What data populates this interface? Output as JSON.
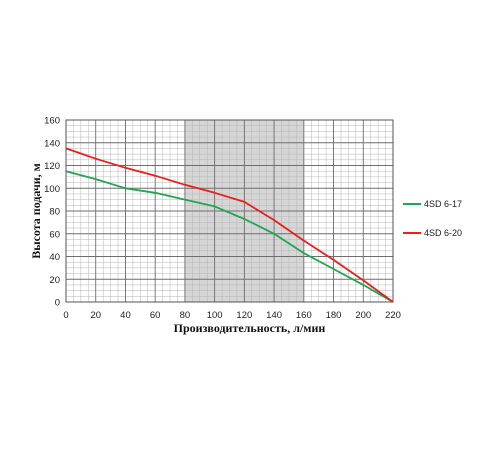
{
  "chart_data": {
    "type": "line",
    "xlabel": "Производительность, л/мин",
    "ylabel": "Высота подачи, м",
    "xlim": [
      0,
      220
    ],
    "ylim": [
      0,
      160
    ],
    "x_ticks": [
      0,
      20,
      40,
      60,
      80,
      100,
      120,
      140,
      160,
      180,
      200,
      220
    ],
    "y_ticks": [
      0,
      20,
      40,
      60,
      80,
      100,
      120,
      140,
      160
    ],
    "grid": true,
    "highlight_range": [
      80,
      160
    ],
    "legend_position": "right",
    "series": [
      {
        "name": "4SD 6-17",
        "color": "#22a550",
        "x": [
          0,
          20,
          40,
          60,
          80,
          100,
          120,
          140,
          160,
          180,
          200,
          220
        ],
        "y": [
          115,
          108,
          100,
          96,
          90,
          84,
          73,
          60,
          43,
          29,
          15,
          0
        ]
      },
      {
        "name": "4SD 6-20",
        "color": "#e8201c",
        "x": [
          0,
          20,
          40,
          60,
          80,
          100,
          120,
          140,
          160,
          180,
          200,
          220
        ],
        "y": [
          135,
          126,
          118,
          111,
          103,
          96,
          88,
          72,
          54,
          37,
          19,
          0
        ]
      }
    ]
  }
}
